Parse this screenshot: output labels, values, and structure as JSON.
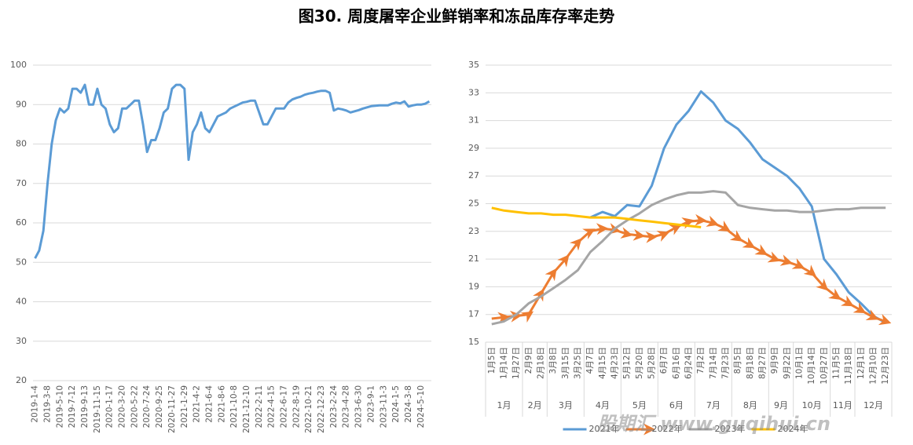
{
  "title": "图30. 周度屠宰企业鲜销率和冻品库存率走势",
  "watermark": "股期汇 www.guqihui.cn",
  "chart_data": [
    {
      "type": "line",
      "categories": [
        "2019-1-4",
        null,
        null,
        "2019-3-8",
        null,
        null,
        "2019-5-10",
        null,
        null,
        "2019-7-12",
        null,
        null,
        "2019-9-13",
        null,
        null,
        "2019-11-15",
        null,
        null,
        "2020-1-17",
        null,
        null,
        "2020-3-20",
        null,
        null,
        "2020-5-22",
        null,
        null,
        "2020-7-24",
        null,
        null,
        "2020-9-25",
        null,
        null,
        "2020-11-27",
        null,
        null,
        "2021-1-29",
        null,
        null,
        "2021-4-2",
        null,
        null,
        "2021-6-4",
        null,
        null,
        "2021-8-6",
        null,
        null,
        "2021-10-8",
        null,
        null,
        "2021-12-10",
        null,
        null,
        "2022-2-11",
        null,
        null,
        "2022-4-15",
        null,
        null,
        "2022-6-17",
        null,
        null,
        "2022-8-19",
        null,
        null,
        "2022-10-21",
        null,
        null,
        "2022-12-23",
        null,
        null,
        "2023-2-24",
        null,
        null,
        "2023-4-28",
        null,
        null,
        "2023-6-30",
        null,
        null,
        "2023-9-1",
        null,
        null,
        "2023-11-3",
        null,
        null,
        "2024-1-5",
        null,
        null,
        "2024-3-8",
        null,
        null,
        "2024-5-10",
        null,
        null
      ],
      "values": [
        51,
        53,
        58,
        70,
        80,
        86,
        89,
        88,
        89,
        94,
        94,
        93,
        95,
        90,
        90,
        94,
        90,
        89,
        85,
        83,
        84,
        89,
        89,
        90,
        91,
        91,
        85,
        78,
        81,
        81,
        84,
        88,
        89,
        94,
        95,
        95,
        94,
        76,
        83,
        85,
        88,
        84,
        83,
        85,
        87,
        87.5,
        88,
        89,
        89.5,
        90,
        90.5,
        90.7,
        91,
        91,
        88,
        85,
        85,
        87,
        89,
        89,
        89,
        90.5,
        91.3,
        91.7,
        92,
        92.5,
        92.8,
        93,
        93.3,
        93.5,
        93.5,
        93,
        88.5,
        89,
        88.8,
        88.5,
        88,
        88.3,
        88.6,
        89,
        89.3,
        89.6,
        89.7,
        89.8,
        89.8,
        89.8,
        90.2,
        90.5,
        90.3,
        90.8,
        89.5,
        89.8,
        90,
        90,
        90.2,
        90.8
      ],
      "color": "#5b9bd5",
      "ylim": [
        20,
        100
      ],
      "yticks": [
        20,
        30,
        40,
        50,
        60,
        70,
        80,
        90,
        100
      ],
      "grid": true
    },
    {
      "type": "line",
      "categories": [
        "1月5日",
        "1月14日",
        "1月27日",
        "2月9日",
        "2月18日",
        "3月8日",
        "3月15日",
        "3月25日",
        "4月7日",
        "4月15日",
        "4月23日",
        "5月12日",
        "5月20日",
        "5月28日",
        "6月7日",
        "6月16日",
        "6月24日",
        "7月2日",
        "7月14日",
        "7月23日",
        "8月5日",
        "8月18日",
        "8月27日",
        "9月9日",
        "9月22日",
        "10月1日",
        "10月14日",
        "10月27日",
        "11月5日",
        "11月18日",
        "12月1日",
        "12月10日",
        "12月23日"
      ],
      "months": [
        "1月",
        "2月",
        "3月",
        "4月",
        "5月",
        "6月",
        "7月",
        "8月",
        "9月",
        "10月",
        "11月",
        "12月"
      ],
      "series": [
        {
          "name": "2021年",
          "color": "#5b9bd5",
          "values": [
            null,
            null,
            null,
            null,
            null,
            null,
            null,
            null,
            24.0,
            24.4,
            24.1,
            24.9,
            24.8,
            26.3,
            29.0,
            30.7,
            31.7,
            33.1,
            32.3,
            31.0,
            30.4,
            29.4,
            28.2,
            27.6,
            27.0,
            26.1,
            24.8,
            21.0,
            19.9,
            18.6,
            17.8,
            16.9,
            16.4
          ]
        },
        {
          "name": "2022年",
          "color": "#ed7d31",
          "arrows": true,
          "values": [
            16.7,
            16.8,
            16.9,
            17.0,
            18.5,
            20.0,
            21.0,
            22.2,
            23.0,
            23.2,
            23.1,
            22.8,
            22.7,
            22.6,
            22.8,
            23.3,
            23.7,
            23.8,
            23.6,
            23.2,
            22.5,
            22.0,
            21.5,
            21.0,
            20.8,
            20.5,
            20.0,
            19.0,
            18.3,
            17.8,
            17.3,
            16.8,
            16.5
          ]
        },
        {
          "name": "2023年",
          "color": "#a5a5a5",
          "values": [
            16.3,
            16.5,
            17.0,
            17.8,
            18.3,
            18.9,
            19.5,
            20.2,
            21.5,
            22.3,
            23.2,
            23.8,
            24.3,
            24.9,
            25.3,
            25.6,
            25.8,
            25.8,
            25.9,
            25.8,
            24.9,
            24.7,
            24.6,
            24.5,
            24.5,
            24.4,
            24.4,
            24.5,
            24.6,
            24.6,
            24.7,
            24.7,
            24.7
          ]
        },
        {
          "name": "2024年",
          "color": "#ffc000",
          "values": [
            24.7,
            24.5,
            24.4,
            24.3,
            24.3,
            24.2,
            24.2,
            24.1,
            24.0,
            24.0,
            24.0,
            23.9,
            23.8,
            23.7,
            23.6,
            23.5,
            23.4,
            23.3,
            null,
            null,
            null,
            null,
            null,
            null,
            null,
            null,
            null,
            null,
            null,
            null,
            null,
            null,
            null
          ]
        }
      ],
      "ylim": [
        15,
        35
      ],
      "yticks": [
        15,
        17,
        19,
        21,
        23,
        25,
        27,
        29,
        31,
        33,
        35
      ],
      "grid": true,
      "legend": "bottom"
    }
  ]
}
